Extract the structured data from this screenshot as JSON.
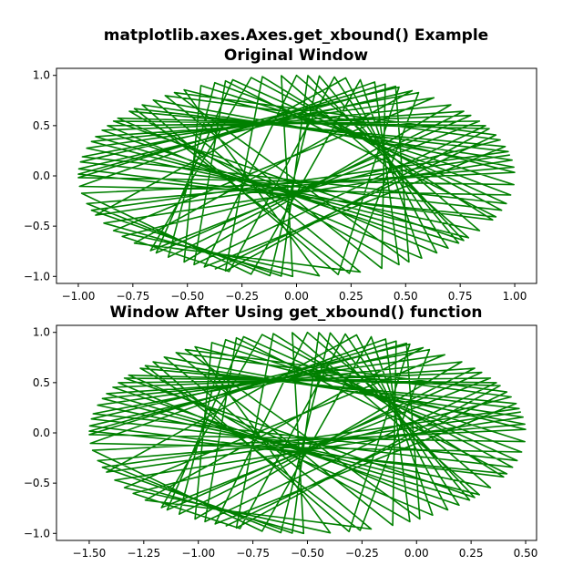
{
  "suptitle": "matplotlib.axes.Axes.get_xbound() Example",
  "colors": {
    "line": "#008000",
    "axes": "#000000",
    "background": "#ffffff"
  },
  "chart_data": [
    {
      "type": "line",
      "title": "Original Window",
      "xlabel": "",
      "ylabel": "",
      "xlim": [
        -1.1,
        1.1
      ],
      "ylim": [
        -1.07,
        1.07
      ],
      "xticks": [
        -1.0,
        -0.75,
        -0.5,
        -0.25,
        0.0,
        0.25,
        0.5,
        0.75,
        1.0
      ],
      "xticklabels": [
        "−1.00",
        "−0.75",
        "−0.50",
        "−0.25",
        "0.00",
        "0.25",
        "0.50",
        "0.75",
        "1.00"
      ],
      "yticks": [
        -1.0,
        -0.5,
        0.0,
        0.5,
        1.0
      ],
      "yticklabels": [
        "−1.0",
        "−0.5",
        "0.0",
        "0.5",
        "1.0"
      ],
      "grid": false,
      "series": [
        {
          "color": "#008000",
          "values_description": "random chords of the unit circle",
          "angles_deg": [
            12,
            203,
            77,
            310,
            145,
            28,
            251,
            99,
            334,
            176,
            58,
            222,
            287,
            131,
            5,
            196,
            263,
            84,
            318,
            157,
            40,
            234,
            112,
            349,
            186,
            69,
            298,
            140,
            17,
            245,
            90,
            327,
            164,
            51,
            213,
            276,
            121,
            2,
            190,
            258,
            73,
            305,
            150,
            33,
            228,
            102,
            340,
            172,
            62,
            281,
            135,
            9,
            208,
            269,
            94,
            322,
            160,
            45,
            239,
            116,
            355,
            181,
            66,
            293,
            127,
            21,
            217,
            252,
            80,
            314,
            153,
            37,
            230,
            107,
            344,
            169,
            56,
            284,
            138,
            14,
            200,
            266,
            87,
            320,
            147,
            30,
            242,
            109,
            336,
            179,
            63,
            301,
            124,
            24,
            248
          ]
        }
      ]
    },
    {
      "type": "line",
      "title": "Window After Using get_xbound() function",
      "xlabel": "",
      "ylabel": "",
      "xlim": [
        -1.65,
        0.55
      ],
      "ylim": [
        -1.07,
        1.07
      ],
      "xticks": [
        -1.5,
        -1.25,
        -1.0,
        -0.75,
        -0.5,
        -0.25,
        0.0,
        0.25,
        0.5
      ],
      "xticklabels": [
        "−1.50",
        "−1.25",
        "−1.00",
        "−0.75",
        "−0.50",
        "−0.25",
        "0.00",
        "0.25",
        "0.50"
      ],
      "yticks": [
        -1.0,
        -0.5,
        0.0,
        0.5,
        1.0
      ],
      "yticklabels": [
        "−1.0",
        "−0.5",
        "0.0",
        "0.5",
        "1.0"
      ],
      "grid": false,
      "series": [
        {
          "color": "#008000",
          "values_description": "same chords, data shifted by x offset",
          "x_offset": -0.5
        }
      ]
    }
  ]
}
